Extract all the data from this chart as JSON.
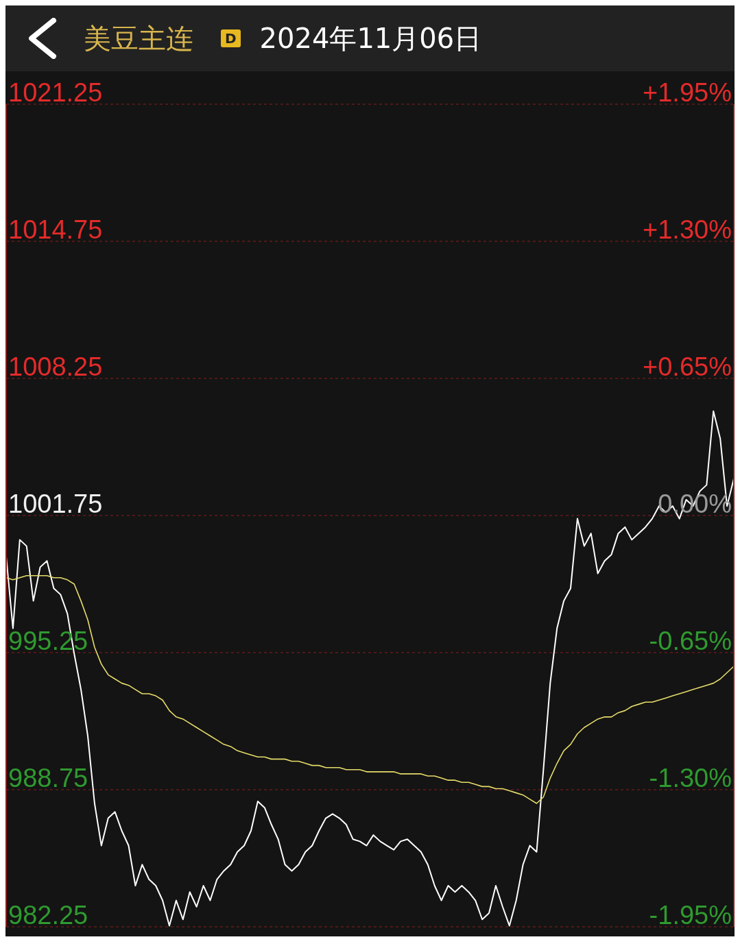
{
  "chart_data": {
    "type": "line",
    "title": "美豆主连",
    "subtitle": "2024年11月06日",
    "annotations": [
      "D"
    ],
    "categories": [
      null,
      null,
      null,
      null,
      null,
      null,
      null,
      null,
      null,
      null,
      null,
      null,
      null,
      null,
      null,
      null,
      null,
      null,
      null,
      null,
      null,
      null,
      null,
      null,
      null,
      null,
      null,
      null,
      null,
      null,
      null,
      null,
      null,
      null,
      null,
      null,
      null,
      null,
      null,
      null,
      null,
      null,
      null,
      null,
      null,
      null,
      null,
      null,
      null,
      null,
      null,
      null,
      null,
      null,
      null,
      null,
      null,
      null,
      null,
      null,
      null,
      null,
      null,
      null,
      null,
      null,
      null,
      null,
      null,
      null,
      null,
      null,
      null,
      null,
      null,
      null,
      null,
      null,
      null,
      null,
      null,
      null,
      null,
      null,
      null,
      null,
      null,
      null,
      null,
      null,
      null,
      null,
      null,
      null,
      null,
      null,
      null,
      null,
      null,
      null,
      null,
      null,
      null,
      null,
      null,
      null,
      null,
      null
    ],
    "series": [
      {
        "color": "#ffffff",
        "values": [
          999.8,
          996.4,
          1000.6,
          1000.3,
          997.7,
          999.3,
          999.6,
          998.3,
          998.0,
          997.1,
          995.2,
          993.5,
          991.3,
          988.1,
          986.1,
          987.4,
          987.7,
          986.8,
          986.1,
          984.2,
          985.2,
          984.5,
          984.2,
          983.5,
          982.3,
          983.5,
          982.6,
          983.9,
          983.2,
          984.2,
          983.5,
          984.5,
          984.9,
          985.2,
          985.8,
          986.1,
          986.8,
          988.2,
          987.9,
          987.1,
          986.4,
          985.2,
          984.9,
          985.2,
          985.8,
          986.1,
          986.8,
          987.4,
          987.6,
          987.4,
          987.1,
          986.4,
          986.3,
          986.1,
          986.6,
          986.3,
          986.1,
          985.9,
          986.3,
          986.4,
          986.1,
          985.8,
          985.2,
          984.2,
          983.5,
          984.2,
          983.9,
          984.2,
          983.9,
          983.5,
          982.6,
          982.9,
          984.2,
          983.2,
          982.3,
          983.5,
          985.2,
          986.1,
          985.8,
          989.7,
          993.8,
          996.4,
          997.7,
          998.3,
          1001.6,
          1000.3,
          1000.9,
          999.0,
          999.6,
          999.9,
          1000.9,
          1001.2,
          1000.6,
          1000.9,
          1001.2,
          1001.6,
          1002.2,
          1001.9,
          1002.2,
          1001.6,
          1002.5,
          1002.2,
          1002.9,
          1003.2,
          1006.7,
          1005.4,
          1002.2,
          1003.5
        ]
      },
      {
        "color": "#e6dc6a",
        "values": [
          998.8,
          998.7,
          998.8,
          998.9,
          998.9,
          998.9,
          998.9,
          998.8,
          998.8,
          998.7,
          998.5,
          997.7,
          996.8,
          995.5,
          994.7,
          994.2,
          994.0,
          993.8,
          993.7,
          993.5,
          993.3,
          993.3,
          993.2,
          993.0,
          992.5,
          992.2,
          992.1,
          991.9,
          991.7,
          991.5,
          991.3,
          991.1,
          990.9,
          990.8,
          990.6,
          990.5,
          990.4,
          990.3,
          990.3,
          990.2,
          990.2,
          990.2,
          990.1,
          990.1,
          990.0,
          989.9,
          989.9,
          989.8,
          989.8,
          989.8,
          989.7,
          989.7,
          989.7,
          989.6,
          989.6,
          989.6,
          989.6,
          989.6,
          989.5,
          989.5,
          989.5,
          989.5,
          989.4,
          989.4,
          989.3,
          989.2,
          989.2,
          989.1,
          989.1,
          989.0,
          988.9,
          988.9,
          988.8,
          988.8,
          988.7,
          988.6,
          988.5,
          988.3,
          988.1,
          988.4,
          989.3,
          990.0,
          990.6,
          990.9,
          991.4,
          991.7,
          991.9,
          992.1,
          992.2,
          992.2,
          992.4,
          992.5,
          992.7,
          992.8,
          992.9,
          992.9,
          993.0,
          993.1,
          993.2,
          993.3,
          993.4,
          993.5,
          993.6,
          993.7,
          993.8,
          994.0,
          994.3,
          994.6
        ]
      }
    ],
    "ylim": [
      982.25,
      1021.25
    ],
    "yticks": [
      982.25,
      988.75,
      995.25,
      1001.75,
      1008.25,
      1014.75,
      1021.25
    ],
    "y2lim": [
      -1.95,
      1.95
    ],
    "y2ticks": [
      {
        "value": -1.95,
        "label": "-1.95%"
      },
      {
        "value": -1.3,
        "label": "-1.30%"
      },
      {
        "value": -0.65,
        "label": "-0.65%"
      },
      {
        "value": 0,
        "label": "0.00%"
      },
      {
        "value": 0.65,
        "label": "+0.65%"
      },
      {
        "value": 1.3,
        "label": "+1.30%"
      },
      {
        "value": 1.95,
        "label": "+1.95%"
      }
    ],
    "grid": "y",
    "legend": false
  }
}
